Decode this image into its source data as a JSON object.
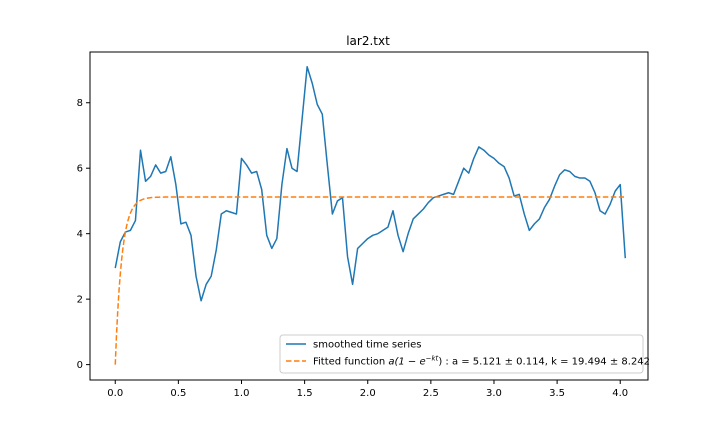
{
  "chart_data": {
    "type": "line",
    "title": "lar2.txt",
    "xlabel": "",
    "ylabel": "",
    "xlim": [
      -0.2,
      4.22
    ],
    "ylim": [
      -0.47,
      9.55
    ],
    "xticks": [
      0.0,
      0.5,
      1.0,
      1.5,
      2.0,
      2.5,
      3.0,
      3.5,
      4.0
    ],
    "xtick_labels": [
      "0.0",
      "0.5",
      "1.0",
      "1.5",
      "2.0",
      "2.5",
      "3.0",
      "3.5",
      "4.0"
    ],
    "yticks": [
      0,
      2,
      4,
      6,
      8
    ],
    "ytick_labels": [
      "0",
      "2",
      "4",
      "6",
      "8"
    ],
    "grid": false,
    "legend_position": "lower-right",
    "series": [
      {
        "name": "smoothed time series",
        "color": "#1f77b4",
        "style": "solid",
        "x": [
          0.0,
          0.04,
          0.08,
          0.12,
          0.16,
          0.2,
          0.24,
          0.28,
          0.32,
          0.36,
          0.4,
          0.44,
          0.48,
          0.52,
          0.56,
          0.6,
          0.64,
          0.68,
          0.72,
          0.76,
          0.8,
          0.84,
          0.88,
          0.92,
          0.96,
          1.0,
          1.04,
          1.08,
          1.12,
          1.16,
          1.2,
          1.24,
          1.28,
          1.32,
          1.36,
          1.4,
          1.44,
          1.48,
          1.52,
          1.56,
          1.6,
          1.64,
          1.68,
          1.72,
          1.76,
          1.8,
          1.84,
          1.88,
          1.92,
          1.96,
          2.0,
          2.04,
          2.08,
          2.12,
          2.16,
          2.2,
          2.24,
          2.28,
          2.32,
          2.36,
          2.4,
          2.44,
          2.48,
          2.52,
          2.56,
          2.6,
          2.64,
          2.68,
          2.72,
          2.76,
          2.8,
          2.84,
          2.88,
          2.92,
          2.96,
          3.0,
          3.04,
          3.08,
          3.12,
          3.16,
          3.2,
          3.24,
          3.28,
          3.32,
          3.36,
          3.4,
          3.44,
          3.48,
          3.52,
          3.56,
          3.6,
          3.64,
          3.68,
          3.72,
          3.76,
          3.8,
          3.84,
          3.88,
          3.92,
          3.96,
          4.0,
          4.04
        ],
        "y": [
          2.95,
          3.75,
          4.05,
          4.1,
          4.4,
          6.55,
          5.6,
          5.75,
          6.1,
          5.85,
          5.9,
          6.35,
          5.5,
          4.3,
          4.35,
          3.95,
          2.7,
          1.95,
          2.45,
          2.7,
          3.5,
          4.6,
          4.7,
          4.65,
          4.6,
          6.3,
          6.1,
          5.85,
          5.9,
          5.35,
          3.95,
          3.55,
          3.85,
          5.5,
          6.6,
          6.0,
          5.9,
          7.5,
          9.1,
          8.6,
          7.95,
          7.65,
          6.1,
          4.6,
          5.0,
          5.1,
          3.3,
          2.45,
          3.55,
          3.7,
          3.85,
          3.95,
          4.0,
          4.1,
          4.2,
          4.7,
          3.95,
          3.45,
          4.0,
          4.45,
          4.6,
          4.75,
          4.95,
          5.1,
          5.15,
          5.2,
          5.25,
          5.2,
          5.6,
          6.0,
          5.85,
          6.3,
          6.65,
          6.55,
          6.4,
          6.3,
          6.15,
          6.05,
          5.7,
          5.15,
          5.2,
          4.6,
          4.1,
          4.3,
          4.45,
          4.8,
          5.05,
          5.45,
          5.8,
          5.95,
          5.9,
          5.75,
          5.7,
          5.7,
          5.6,
          5.25,
          4.7,
          4.6,
          4.9,
          5.3,
          5.5,
          3.25
        ]
      },
      {
        "name": "Fitted function $a(1-e^{-kt})$ : $a=5.121\\pm0.114$, $k=19.494\\pm8.242$",
        "color": "#ff7f0e",
        "style": "dashed",
        "function": "a(1-e^{-kt})",
        "params": {
          "a": 5.121,
          "k": 19.494
        },
        "x_range": [
          0.0,
          4.03
        ]
      }
    ],
    "legend": {
      "entries": [
        {
          "label": "smoothed time series"
        },
        {
          "label_prefix": "Fitted function ",
          "label_formula": "a(1 − e",
          "label_exp": "−kt",
          "label_rest": ") : a = 5.121 ± 0.114, k = 19.494 ± 8.242"
        }
      ]
    }
  }
}
